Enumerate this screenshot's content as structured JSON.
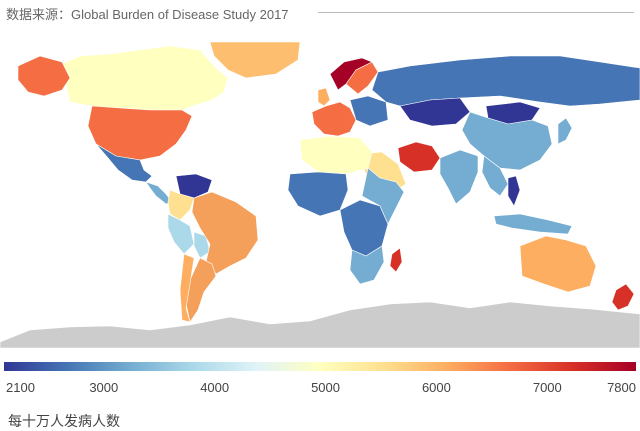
{
  "header": {
    "source_text": "数据来源：Global Burden of Disease Study 2017"
  },
  "legend": {
    "caption": "每十万人发病人数",
    "min": 2100,
    "max": 7800,
    "ticks": [
      "2100",
      "3000",
      "4000",
      "5000",
      "6000",
      "7000",
      "7800"
    ],
    "colors": [
      "#313695",
      "#4575b4",
      "#74add1",
      "#abd9e9",
      "#e0f3f8",
      "#ffffbf",
      "#fee090",
      "#fdae61",
      "#f46d43",
      "#d73027",
      "#a50026"
    ]
  },
  "map_colors": {
    "ocean": "#ffffff",
    "antarctica": "#cccccc",
    "greenland": "#fdbf6f",
    "canada": "#ffffbf",
    "alaska": "#f46d43",
    "usa": "#f46d43",
    "mexico": "#4575b4",
    "central_america": "#74add1",
    "venezuela": "#313695",
    "colombia": "#fee090",
    "peru": "#abd9e9",
    "bolivia": "#abd9e9",
    "brazil": "#f4a05a",
    "argentina": "#f4a05a",
    "chile": "#fdae61",
    "uk": "#fdae61",
    "norway": "#a50026",
    "scandinavia": "#f46d43",
    "w_europe": "#f46d43",
    "e_europe": "#4575b4",
    "russia": "#4575b4",
    "kazakhstan": "#313695",
    "mongolia": "#313695",
    "iran": "#d73027",
    "arabia": "#fee090",
    "n_africa": "#ffffbf",
    "w_africa": "#4575b4",
    "c_africa": "#4575b4",
    "e_africa": "#74add1",
    "s_africa": "#74add1",
    "madagascar": "#d73027",
    "india": "#74add1",
    "china": "#74add1",
    "se_asia": "#74add1",
    "vietnam": "#313695",
    "japan": "#74add1",
    "indonesia": "#74add1",
    "australia": "#fdae61",
    "new_zealand": "#d73027"
  }
}
